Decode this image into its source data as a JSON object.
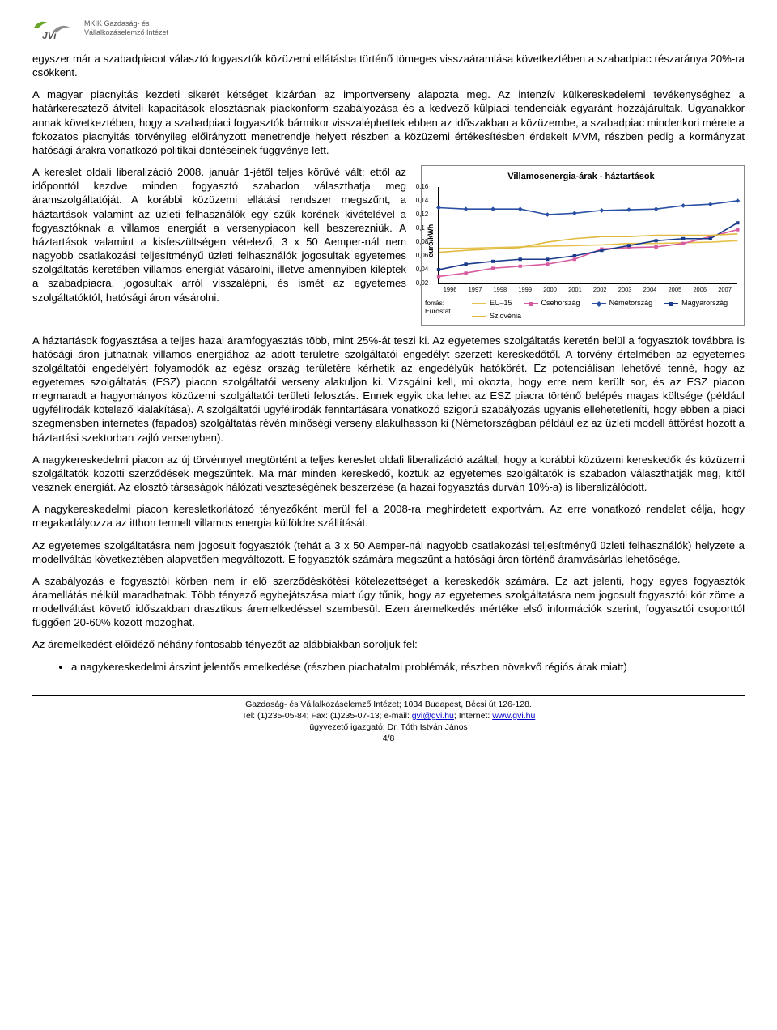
{
  "logo": {
    "line1": "MKIK Gazdaság- és",
    "line2": "Vállalkozáselemző Intézet",
    "green": "#6aa52b",
    "gray": "#8c8c8c"
  },
  "paragraphs": {
    "p1": "egyszer már a szabadpiacot választó fogyasztók közüzemi ellátásba történő tömeges visszaáramlása következtében a szabadpiac részaránya 20%-ra csökkent.",
    "p2": "A magyar piacnyitás kezdeti sikerét kétséget kizáróan az importverseny alapozta meg. Az intenzív külkereskedelemi tevékenységhez a határkeresztező átviteli kapacitások elosztásnak piackonform szabályozása és a kedvező külpiaci tendenciák egyaránt hozzájárultak. Ugyanakkor annak következtében, hogy a szabadpiaci fogyasztók bármikor visszaléphettek ebben az időszakban a közüzembe, a szabadpiac mindenkori mérete a fokozatos piacnyitás törvényileg előirányzott menetrendje helyett részben a közüzemi értékesítésben érdekelt MVM, részben pedig a kormányzat hatósági árakra vonatkozó politikai döntéseinek függvénye lett.",
    "p3": "A kereslet oldali liberalizáció 2008. január 1-jétől teljes körűvé vált: ettől az időponttól kezdve minden fogyasztó szabadon választhatja meg áramszolgáltatóját. A korábbi közüzemi ellátási rendszer megszűnt, a háztartások valamint az üzleti felhasználók egy szűk körének kivételével a fogyasztóknak a villamos energiát a versenypiacon kell beszerezniük. A háztartások valamint a kisfeszültségen vételező, 3 x 50 Aemper-nál nem nagyobb csatlakozási teljesítményű üzleti felhasználók jogosultak egyetemes szolgáltatás keretében villamos energiát vásárolni, illetve amennyiben kiléptek a szabadpiacra, jogosultak arról visszalépni, és ismét az egyetemes szolgáltatóktól, hatósági áron vásárolni.",
    "p4": "A háztartások fogyasztása a  teljes hazai áramfogyasztás több, mint 25%-át teszi ki. Az egyetemes szolgáltatás keretén belül a fogyasztók továbbra is hatósági áron juthatnak villamos energiához az adott területre szolgáltatói engedélyt szerzett kereskedőtől. A törvény értelmében az egyetemes szolgáltatói engedélyért folyamodók az egész ország területére kérhetik az engedélyük hatókörét. Ez potenciálisan lehetővé tenné, hogy az egyetemes szolgáltatás (ESZ) piacon szolgáltatói verseny alakuljon ki. Vizsgálni kell, mi okozta, hogy erre nem került sor, és az ESZ piacon megmaradt a hagyományos közüzemi szolgáltatói területi felosztás. Ennek egyik oka lehet az ESZ piacra történő belépés magas költsége (például ügyfélirodák kötelező kialakítása). A szolgáltatói ügyfélirodák fenntartására vonatkozó szigorú szabályozás ugyanis ellehetetleníti, hogy ebben a piaci szegmensben internetes (fapados) szolgáltatás révén minőségi verseny alakulhasson ki (Németországban például ez az üzleti modell áttörést hozott a háztartási szektorban zajló versenyben).",
    "p5": "A nagykereskedelmi piacon az új törvénnyel megtörtént a teljes kereslet oldali liberalizáció azáltal, hogy a korábbi közüzemi kereskedők és közüzemi szolgáltatók közötti szerződések megszűntek. Ma már minden kereskedő, köztük az egyetemes szolgáltatók is szabadon választhatják meg, kitől vesznek energiát. Az elosztó társaságok hálózati veszteségének beszerzése (a hazai fogyasztás durván 10%-a) is liberalizálódott.",
    "p6": "A nagykereskedelmi piacon keresletkorlátozó tényezőként merül fel a 2008-ra meghirdetett exportvám. Az erre vonatkozó rendelet célja, hogy megakadályozza az itthon termelt villamos energia külföldre szállítását.",
    "p7": "Az egyetemes szolgáltatásra nem jogosult fogyasztók (tehát a 3 x 50 Aemper-nál nagyobb csatlakozási teljesítményű üzleti felhasználók) helyzete a modellváltás következtében alapvetően megváltozott. E fogyasztók számára megszűnt a hatósági áron történő áramvásárlás lehetősége.",
    "p8": "A szabályozás e fogyasztói körben nem ír elő szerződéskötési kötelezettséget a kereskedők számára. Ez azt jelenti, hogy egyes fogyasztók áramellátás nélkül maradhatnak. Több tényező egybejátszása miatt úgy tűnik, hogy az egyetemes szolgáltatásra nem jogosult fogyasztói kör zöme a modellváltást követő időszakban drasztikus áremelkedéssel szembesül. Ezen áremelkedés mértéke első információk szerint, fogyasztói csoporttól függően 20-60% között mozoghat.",
    "p9": "Az áremelkedést előidéző néhány fontosabb tényezőt az alábbiakban soroljuk fel:"
  },
  "bullet1": "a nagykereskedelmi árszint jelentős emelkedése (részben piachatalmi problémák, részben növekvő régiós árak miatt)",
  "chart": {
    "title": "Villamosenergia-árak - háztartások",
    "ylabel": "euró/kWh",
    "ylim": [
      0.02,
      0.16
    ],
    "ytick_step": 0.02,
    "yticks": [
      "0,02",
      "0,04",
      "0,06",
      "0,08",
      "0,1",
      "0,12",
      "0,14",
      "0,16"
    ],
    "years": [
      "1996",
      "1997",
      "1998",
      "1999",
      "2000",
      "2001",
      "2002",
      "2003",
      "2004",
      "2005",
      "2006",
      "2007"
    ],
    "series": [
      {
        "name": "EU–15",
        "color": "#e6c24d",
        "marker": "none",
        "values": [
          0.071,
          0.071,
          0.072,
          0.073,
          0.074,
          0.075,
          0.076,
          0.078,
          0.078,
          0.079,
          0.08,
          0.082
        ]
      },
      {
        "name": "Csehország",
        "color": "#d65aa0",
        "marker": "square",
        "values": [
          0.03,
          0.035,
          0.042,
          0.045,
          0.048,
          0.055,
          0.07,
          0.072,
          0.073,
          0.078,
          0.088,
          0.098
        ]
      },
      {
        "name": "Németország",
        "color": "#2a50a6",
        "marker": "diamond",
        "values": [
          0.13,
          0.128,
          0.128,
          0.128,
          0.12,
          0.122,
          0.126,
          0.127,
          0.128,
          0.133,
          0.135,
          0.14
        ]
      },
      {
        "name": "Magyarország",
        "color": "#1a3a8a",
        "marker": "square",
        "values": [
          0.04,
          0.048,
          0.052,
          0.055,
          0.055,
          0.06,
          0.068,
          0.075,
          0.082,
          0.085,
          0.085,
          0.108
        ]
      },
      {
        "name": "Szlovénia",
        "color": "#e0b83e",
        "marker": "none",
        "values": [
          0.065,
          0.068,
          0.07,
          0.072,
          0.08,
          0.085,
          0.088,
          0.088,
          0.09,
          0.09,
          0.09,
          0.092
        ]
      }
    ],
    "source_label1": "forrás:",
    "source_label2": "Eurostat",
    "grid_color": "#e0e0e0",
    "background": "#ffffff"
  },
  "footer": {
    "line1": "Gazdaság- és Vállalkozáselemző Intézet; 1034 Budapest, Bécsi út 126-128.",
    "line2_a": "Tel: (1)235-05-84;  Fax: (1)235-07-13;  e-mail: ",
    "email": "gvi@gvi.hu",
    "line2_b": ";  Internet: ",
    "url": "www.gvi.hu",
    "line3": "ügyvezető igazgató: Dr. Tóth István János",
    "page": "4/8"
  }
}
